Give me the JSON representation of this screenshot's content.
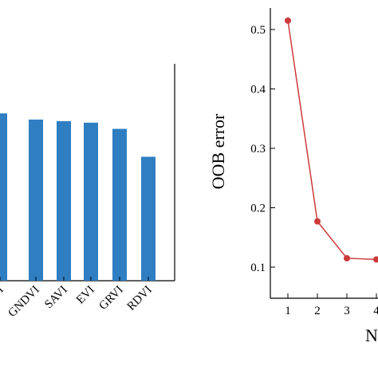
{
  "colors": {
    "bar": "#2f7ec2",
    "line": "#cc3a3a",
    "axis": "#000000"
  },
  "chart_data": [
    {
      "type": "bar",
      "categories": [
        "NDVI",
        "GNDVI",
        "SAVI",
        "EVI",
        "GRVI",
        "RDVI"
      ],
      "category_labels_visible": [
        "DVI",
        "GNDVI",
        "SAVI",
        "EVI",
        "GRVI",
        "RDVI"
      ],
      "values": [
        0.108,
        0.104,
        0.103,
        0.102,
        0.098,
        0.08
      ],
      "ylim": [
        0,
        0.14
      ],
      "xlabel": "",
      "ylabel": "",
      "title": "",
      "grid": false
    },
    {
      "type": "line",
      "x": [
        1,
        2,
        3,
        4
      ],
      "y": [
        0.515,
        0.177,
        0.115,
        0.113
      ],
      "xticks": [
        "1",
        "2",
        "3",
        "4"
      ],
      "yticks": [
        "0.1",
        "0.2",
        "0.3",
        "0.4",
        "0.5"
      ],
      "xlim": [
        0.5,
        4.3
      ],
      "ylim": [
        0.05,
        0.54
      ],
      "ylabel": "OOB error",
      "xlabel_visible": "N",
      "title": "",
      "grid": false,
      "marker": "circle"
    }
  ]
}
